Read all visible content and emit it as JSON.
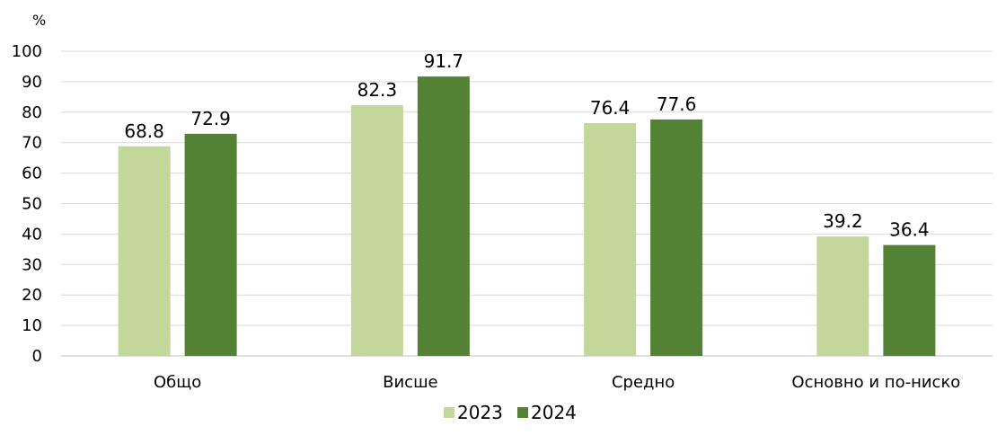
{
  "chart_data": {
    "type": "bar",
    "unit_label": "%",
    "categories": [
      "Общо",
      "Висше",
      "Средно",
      "Основно и по-ниско"
    ],
    "series": [
      {
        "name": "2023",
        "values": [
          68.8,
          82.3,
          76.4,
          39.2
        ],
        "color": "#c4d79b"
      },
      {
        "name": "2024",
        "values": [
          72.9,
          91.7,
          77.6,
          36.4
        ],
        "color": "#548235"
      }
    ],
    "ylim": [
      0,
      100
    ],
    "yticks": [
      0,
      10,
      20,
      30,
      40,
      50,
      60,
      70,
      80,
      90,
      100
    ],
    "grid": true,
    "legend_position": "bottom",
    "gridline_color": "#d9d9d9",
    "axis_color": "#bfbfbf"
  }
}
